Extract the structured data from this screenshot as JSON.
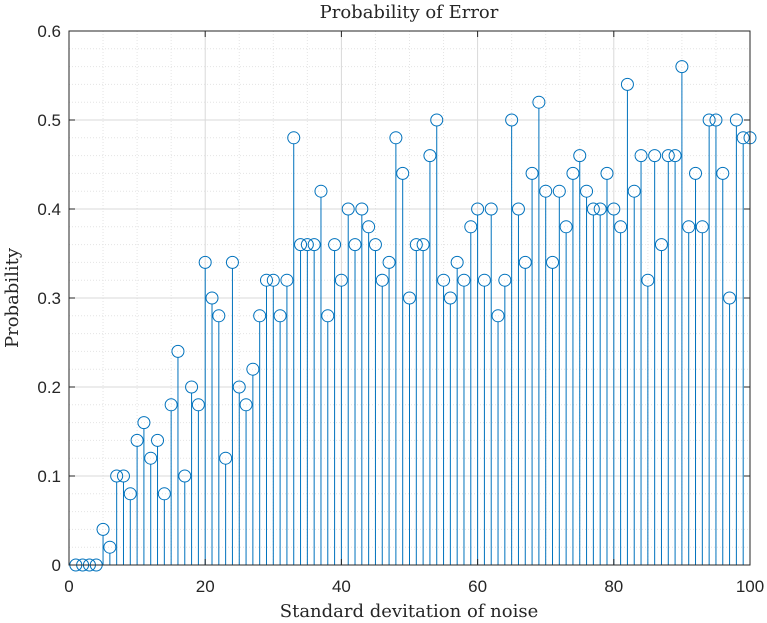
{
  "chart_data": {
    "type": "stem",
    "title": "Probability of Error",
    "xlabel": "Standard devitation of noise",
    "ylabel": "Probability",
    "xlim": [
      0,
      100
    ],
    "ylim": [
      0,
      0.6
    ],
    "xticks": [
      0,
      20,
      40,
      60,
      80,
      100
    ],
    "xtick_labels": [
      "0",
      "20",
      "40",
      "60",
      "80",
      "100"
    ],
    "yticks": [
      0,
      0.1,
      0.2,
      0.3,
      0.4,
      0.5,
      0.6
    ],
    "ytick_labels": [
      "0",
      "0.1",
      "0.2",
      "0.3",
      "0.4",
      "0.5",
      "0.6"
    ],
    "grid": true,
    "minor_grid": true,
    "color": "#0072BD",
    "x": [
      1,
      2,
      3,
      4,
      5,
      6,
      7,
      8,
      9,
      10,
      11,
      12,
      13,
      14,
      15,
      16,
      17,
      18,
      19,
      20,
      21,
      22,
      23,
      24,
      25,
      26,
      27,
      28,
      29,
      30,
      31,
      32,
      33,
      34,
      35,
      36,
      37,
      38,
      39,
      40,
      41,
      42,
      43,
      44,
      45,
      46,
      47,
      48,
      49,
      50,
      51,
      52,
      53,
      54,
      55,
      56,
      57,
      58,
      59,
      60,
      61,
      62,
      63,
      64,
      65,
      66,
      67,
      68,
      69,
      70,
      71,
      72,
      73,
      74,
      75,
      76,
      77,
      78,
      79,
      80,
      81,
      82,
      83,
      84,
      85,
      86,
      87,
      88,
      89,
      90,
      91,
      92,
      93,
      94,
      95,
      96,
      97,
      98,
      99,
      100
    ],
    "values": [
      0,
      0,
      0,
      0,
      0.04,
      0.02,
      0.1,
      0.1,
      0.08,
      0.14,
      0.16,
      0.12,
      0.14,
      0.08,
      0.18,
      0.24,
      0.1,
      0.2,
      0.18,
      0.34,
      0.3,
      0.28,
      0.12,
      0.34,
      0.2,
      0.18,
      0.22,
      0.28,
      0.32,
      0.32,
      0.28,
      0.32,
      0.48,
      0.36,
      0.36,
      0.36,
      0.42,
      0.28,
      0.36,
      0.32,
      0.4,
      0.36,
      0.4,
      0.38,
      0.36,
      0.32,
      0.34,
      0.48,
      0.44,
      0.3,
      0.36,
      0.36,
      0.46,
      0.5,
      0.32,
      0.3,
      0.34,
      0.32,
      0.38,
      0.4,
      0.32,
      0.4,
      0.28,
      0.32,
      0.5,
      0.4,
      0.34,
      0.44,
      0.52,
      0.42,
      0.34,
      0.42,
      0.38,
      0.44,
      0.46,
      0.42,
      0.4,
      0.4,
      0.44,
      0.4,
      0.38,
      0.54,
      0.42,
      0.46,
      0.32,
      0.46,
      0.36,
      0.46,
      0.46,
      0.56,
      0.38,
      0.44,
      0.38,
      0.5,
      0.5,
      0.44,
      0.3,
      0.5,
      0.48,
      0.48
    ]
  }
}
